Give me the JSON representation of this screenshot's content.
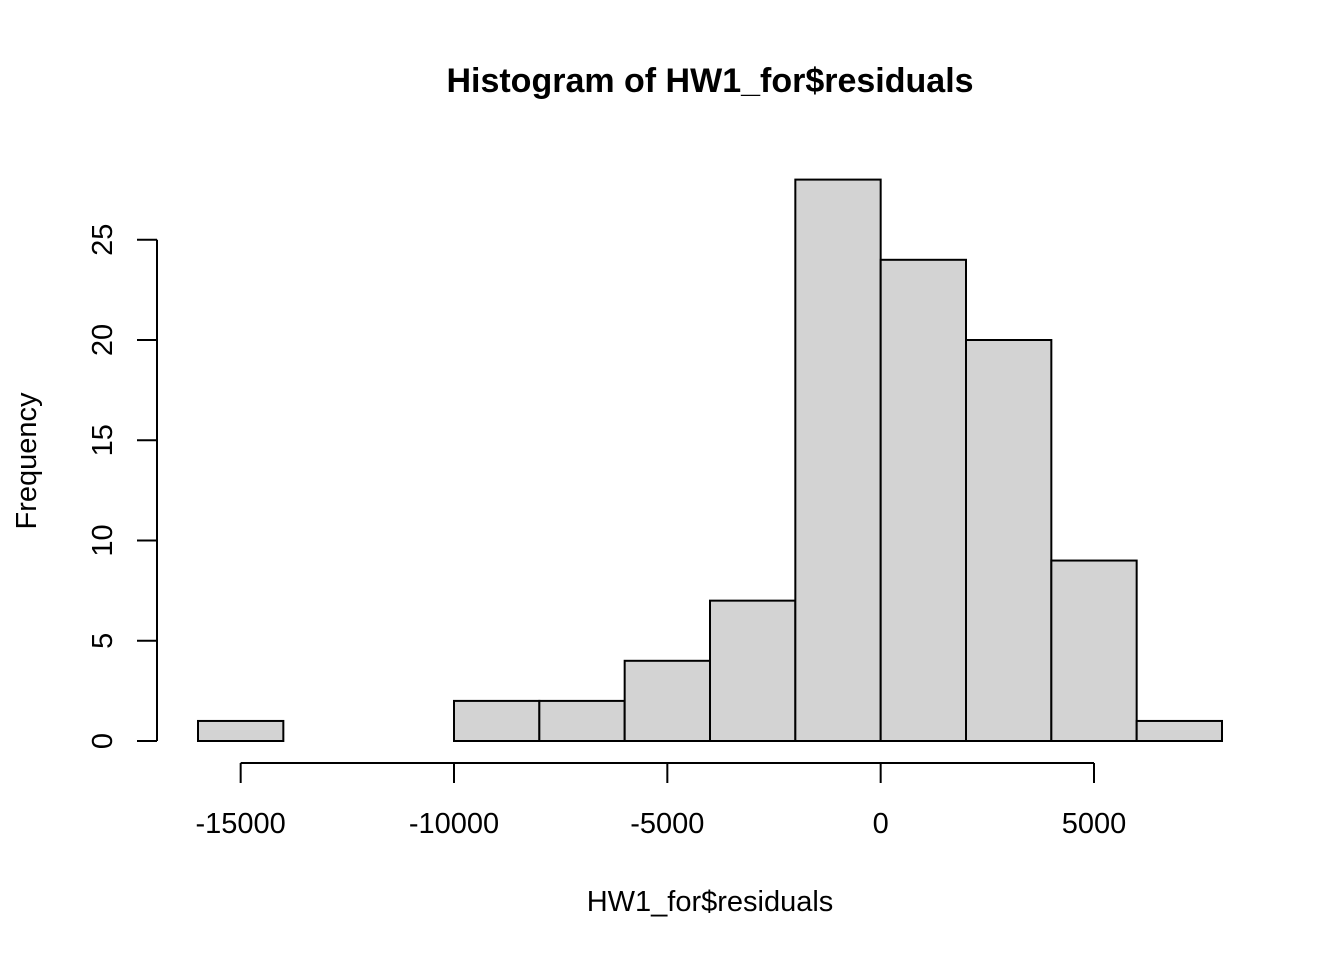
{
  "chart_data": {
    "type": "bar",
    "title": "Histogram of HW1_for$residuals",
    "xlabel": "HW1_for$residuals",
    "ylabel": "Frequency",
    "bin_edges": [
      -16000,
      -14000,
      -12000,
      -10000,
      -8000,
      -6000,
      -4000,
      -2000,
      0,
      2000,
      4000,
      6000,
      8000
    ],
    "values": [
      1,
      0,
      0,
      2,
      2,
      4,
      7,
      28,
      24,
      20,
      9,
      1
    ],
    "xlim": [
      -16000,
      8000
    ],
    "ylim": [
      0,
      28
    ],
    "x_ticks": [
      -15000,
      -10000,
      -5000,
      0,
      5000
    ],
    "x_tick_labels": [
      "-15000",
      "-10000",
      "-5000",
      "0",
      "5000"
    ],
    "y_ticks": [
      0,
      5,
      10,
      15,
      20,
      25
    ],
    "y_tick_labels": [
      "0",
      "5",
      "10",
      "15",
      "20",
      "25"
    ],
    "bar_fill": "#d3d3d3",
    "bar_stroke": "#000000",
    "grid": false
  }
}
